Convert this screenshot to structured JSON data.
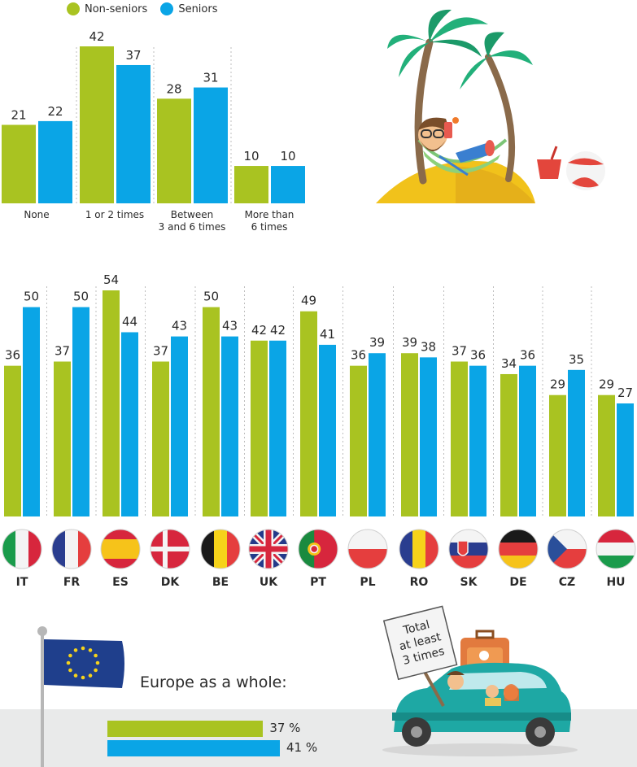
{
  "colors": {
    "non_seniors": "#a9c321",
    "seniors": "#0aa5e6",
    "band": "#e9eaea"
  },
  "legend": {
    "non_seniors": "Non-seniors",
    "seniors": "Seniors"
  },
  "chart_data": [
    {
      "type": "bar",
      "categories": [
        "None",
        "1 or 2 times",
        "Between 3 and 6 times",
        "More than 6 times"
      ],
      "category_lines": [
        [
          "None"
        ],
        [
          "1 or 2 times"
        ],
        [
          "Between",
          "3 and 6 times"
        ],
        [
          "More than",
          "6 times"
        ]
      ],
      "series": [
        {
          "name": "Non-seniors",
          "values": [
            21,
            42,
            28,
            10
          ]
        },
        {
          "name": "Seniors",
          "values": [
            22,
            37,
            31,
            10
          ]
        }
      ],
      "ylim": [
        0,
        42
      ]
    },
    {
      "type": "bar",
      "categories": [
        "IT",
        "FR",
        "ES",
        "DK",
        "BE",
        "UK",
        "PT",
        "PL",
        "RO",
        "SK",
        "DE",
        "CZ",
        "HU"
      ],
      "series": [
        {
          "name": "Non-seniors",
          "values": [
            36,
            37,
            54,
            37,
            50,
            42,
            49,
            36,
            39,
            37,
            34,
            29,
            29
          ]
        },
        {
          "name": "Seniors",
          "values": [
            50,
            50,
            44,
            43,
            43,
            42,
            41,
            39,
            38,
            36,
            36,
            35,
            27
          ]
        }
      ],
      "ylim": [
        0,
        54
      ]
    }
  ],
  "europe": {
    "label": "Europe as a whole:",
    "non_seniors": 37,
    "seniors": 41,
    "non_seniors_label": "37 %",
    "seniors_label": "41 %"
  },
  "sign_text": [
    "Total",
    "at least",
    "3 times"
  ]
}
